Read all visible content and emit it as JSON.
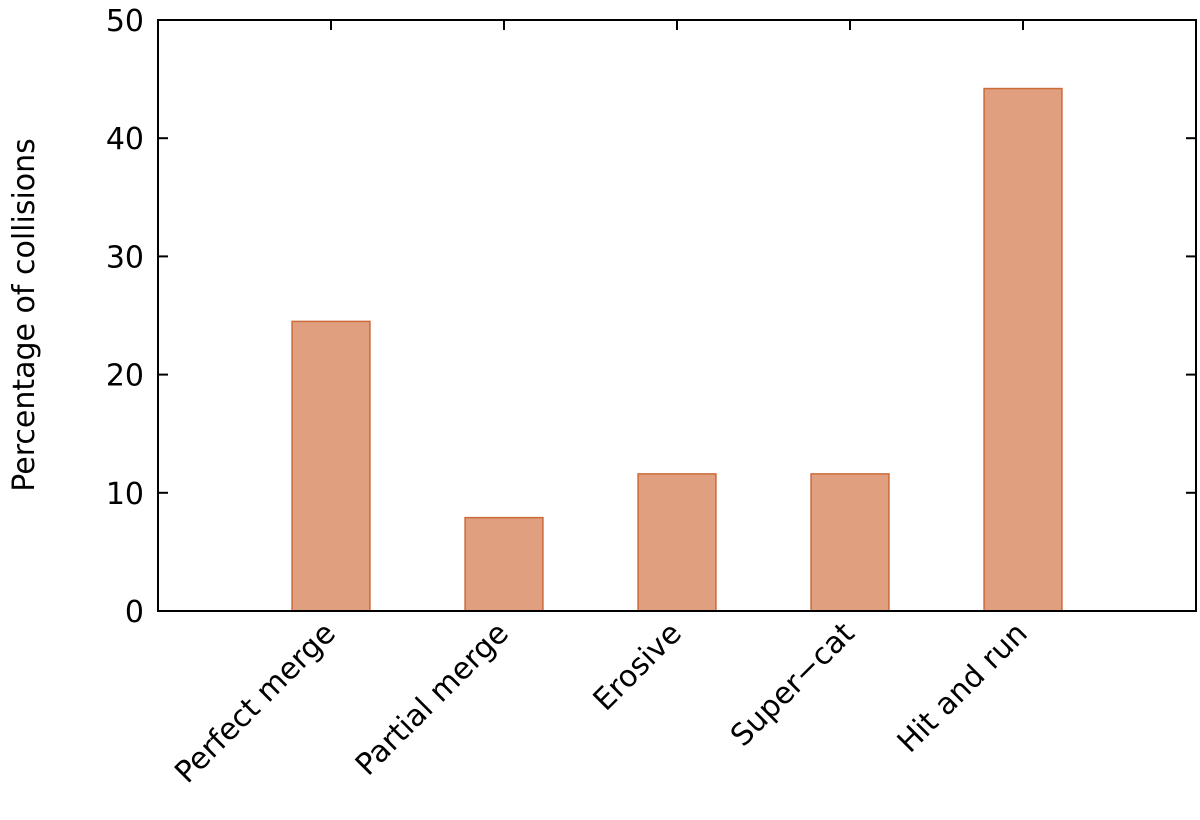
{
  "chart_data": {
    "type": "bar",
    "ylabel": "Percentage of collisions",
    "categories": [
      "Perfect merge",
      "Partial merge",
      "Erosive",
      "Super−cat",
      "Hit and run"
    ],
    "values": [
      24.5,
      7.9,
      11.6,
      11.6,
      44.2
    ],
    "color": "#e0a07f",
    "edgecolor": "#cc6a3a",
    "ylim": [
      0,
      50
    ],
    "yticks": [
      0,
      10,
      20,
      30,
      40,
      50
    ],
    "grid": false
  }
}
